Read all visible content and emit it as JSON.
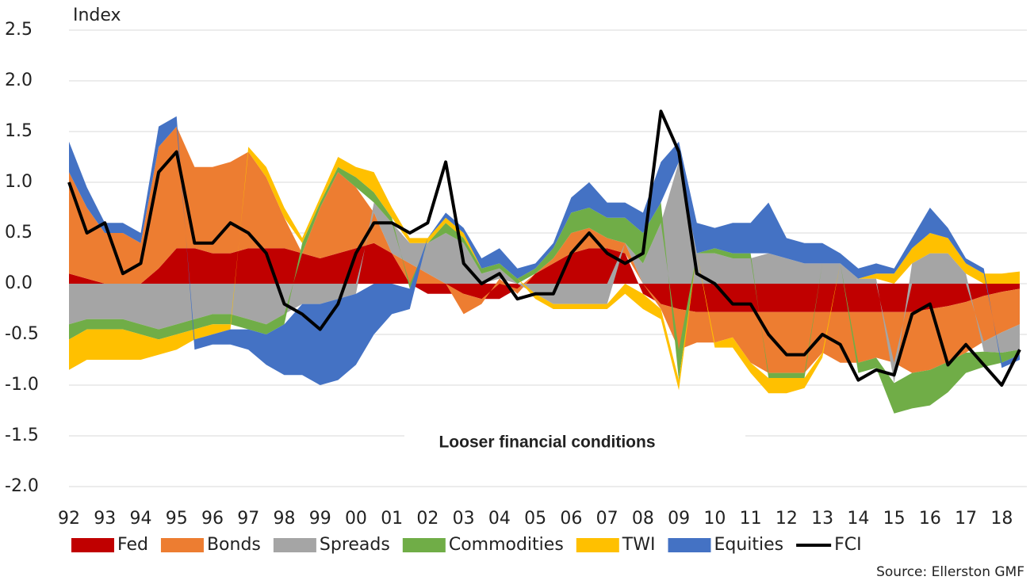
{
  "chart_data": {
    "type": "area",
    "stacked": true,
    "y_axis_label": "Index",
    "annotation": "Looser financial conditions",
    "source": "Source: Ellerston GMF",
    "legend": "bottom",
    "grid": true,
    "xlim": [
      1992,
      2018.7
    ],
    "ylim": [
      -2,
      2.5
    ],
    "yticks": [
      {
        "value": -2,
        "label": "-2.0"
      },
      -1.5,
      {
        "value": -1,
        "label": "-1.0"
      },
      -0.5,
      {
        "value": 0,
        "label": "0.0"
      },
      0.5,
      {
        "value": 1,
        "label": "1.0"
      },
      1.5,
      {
        "value": 2,
        "label": "2.0"
      },
      2.5
    ],
    "xticks": [
      {
        "value": 1992,
        "label": "92"
      },
      {
        "value": 1993,
        "label": "93"
      },
      {
        "value": 1994,
        "label": "94"
      },
      {
        "value": 1995,
        "label": "95"
      },
      {
        "value": 1996,
        "label": "96"
      },
      {
        "value": 1997,
        "label": "97"
      },
      {
        "value": 1998,
        "label": "98"
      },
      {
        "value": 1999,
        "label": "99"
      },
      {
        "value": 2000,
        "label": "00"
      },
      {
        "value": 2001,
        "label": "01"
      },
      {
        "value": 2002,
        "label": "02"
      },
      {
        "value": 2003,
        "label": "03"
      },
      {
        "value": 2004,
        "label": "04"
      },
      {
        "value": 2005,
        "label": "05"
      },
      {
        "value": 2006,
        "label": "06"
      },
      {
        "value": 2007,
        "label": "07"
      },
      {
        "value": 2008,
        "label": "08"
      },
      {
        "value": 2009,
        "label": "09"
      },
      {
        "value": 2010,
        "label": "10"
      },
      {
        "value": 2011,
        "label": "11"
      },
      {
        "value": 2012,
        "label": "12"
      },
      {
        "value": 2013,
        "label": "13"
      },
      {
        "value": 2014,
        "label": "14"
      },
      {
        "value": 2015,
        "label": "15"
      },
      {
        "value": 2016,
        "label": "16"
      },
      {
        "value": 2017,
        "label": "17"
      },
      {
        "value": 2018,
        "label": "18"
      }
    ],
    "x": [
      1992,
      1992.5,
      1993,
      1993.5,
      1994,
      1994.5,
      1995,
      1995.5,
      1996,
      1996.5,
      1997,
      1997.5,
      1998,
      1998.5,
      1999,
      1999.5,
      2000,
      2000.5,
      2001,
      2001.5,
      2002,
      2002.5,
      2003,
      2003.5,
      2004,
      2004.5,
      2005,
      2005.5,
      2006,
      2006.5,
      2007,
      2007.5,
      2008,
      2008.5,
      2009,
      2009.5,
      2010,
      2010.5,
      2011,
      2011.5,
      2012,
      2012.5,
      2013,
      2013.5,
      2014,
      2014.5,
      2015,
      2015.5,
      2016,
      2016.5,
      2017,
      2017.5,
      2018,
      2018.5
    ],
    "series": [
      {
        "name": "Fed",
        "color": "#c00000",
        "values": [
          0.1,
          0.05,
          0,
          0,
          0,
          0.15,
          0.35,
          0.35,
          0.3,
          0.3,
          0.35,
          0.35,
          0.35,
          0.3,
          0.25,
          0.3,
          0.35,
          0.4,
          0.3,
          0,
          -0.1,
          -0.1,
          -0.1,
          -0.15,
          -0.15,
          -0.05,
          0.1,
          0.2,
          0.3,
          0.35,
          0.35,
          0.3,
          -0.1,
          -0.2,
          -0.25,
          -0.28,
          -0.28,
          -0.28,
          -0.28,
          -0.28,
          -0.28,
          -0.28,
          -0.28,
          -0.28,
          -0.28,
          -0.28,
          -0.28,
          -0.28,
          -0.25,
          -0.22,
          -0.18,
          -0.12,
          -0.08,
          -0.05
        ]
      },
      {
        "name": "Bonds",
        "color": "#ed7d31",
        "values": [
          1.0,
          0.7,
          0.5,
          0.5,
          0.4,
          1.2,
          1.2,
          0.8,
          0.85,
          0.9,
          0.95,
          0.7,
          0.3,
          0,
          0.5,
          0.8,
          0.6,
          0.3,
          0,
          0.2,
          0.1,
          0,
          -0.2,
          -0.05,
          0.05,
          -0.05,
          0,
          0.05,
          0.2,
          0.2,
          0.1,
          0.1,
          0,
          -0.05,
          -0.4,
          -0.3,
          -0.3,
          -0.25,
          -0.5,
          -0.6,
          -0.6,
          -0.6,
          -0.4,
          -0.5,
          -0.5,
          -0.45,
          -0.5,
          -0.6,
          -0.6,
          -0.55,
          -0.5,
          -0.45,
          -0.4,
          -0.35
        ]
      },
      {
        "name": "Spreads",
        "color": "#a5a5a5",
        "values": [
          -0.4,
          -0.35,
          -0.35,
          -0.35,
          -0.4,
          -0.45,
          -0.4,
          -0.35,
          -0.3,
          -0.3,
          -0.35,
          -0.4,
          -0.3,
          -0.2,
          -0.2,
          -0.15,
          -0.1,
          0.1,
          0.3,
          0.2,
          0.3,
          0.5,
          0.4,
          0.1,
          0.1,
          0,
          -0.1,
          -0.2,
          -0.2,
          -0.2,
          -0.2,
          0,
          0.2,
          0.6,
          1.2,
          0.3,
          0.3,
          0.25,
          0.25,
          0.3,
          0.25,
          0.2,
          0.2,
          0.2,
          0.05,
          0.05,
          -0.2,
          0.2,
          0.3,
          0.3,
          0.1,
          -0.1,
          -0.2,
          -0.25
        ]
      },
      {
        "name": "Commodities",
        "color": "#70ad47",
        "values": [
          -0.15,
          -0.1,
          -0.1,
          -0.1,
          -0.1,
          -0.1,
          -0.1,
          -0.1,
          -0.1,
          -0.1,
          -0.1,
          -0.1,
          -0.1,
          0.1,
          0.05,
          0.05,
          0.1,
          0.1,
          0.05,
          -0.05,
          0,
          0.1,
          0.05,
          0.05,
          0.05,
          0.05,
          0.05,
          0.1,
          0.2,
          0.2,
          0.2,
          0.25,
          0.3,
          0.2,
          -0.3,
          0,
          0.05,
          0.05,
          0.05,
          -0.05,
          -0.05,
          -0.05,
          0,
          0,
          -0.1,
          -0.1,
          -0.3,
          -0.35,
          -0.35,
          -0.3,
          -0.2,
          -0.15,
          -0.1,
          -0.05
        ]
      },
      {
        "name": "TWI",
        "color": "#ffc000",
        "values": [
          -0.3,
          -0.3,
          -0.3,
          -0.3,
          -0.25,
          -0.15,
          -0.15,
          -0.1,
          -0.1,
          -0.05,
          0.05,
          0.1,
          0.1,
          0.05,
          0.05,
          0.1,
          0.1,
          0.2,
          0.1,
          0.05,
          0.05,
          0.05,
          0.05,
          0,
          0,
          0,
          -0.05,
          -0.05,
          -0.05,
          -0.05,
          -0.05,
          -0.1,
          -0.15,
          -0.1,
          -0.1,
          0,
          -0.05,
          -0.1,
          -0.1,
          -0.15,
          -0.15,
          -0.1,
          -0.05,
          0,
          0,
          0.05,
          0.1,
          0.15,
          0.2,
          0.15,
          0.1,
          0.1,
          0.1,
          0.12
        ]
      },
      {
        "name": "Equities",
        "color": "#4472c4",
        "values": [
          0.3,
          0.2,
          0.1,
          0.1,
          0.1,
          0.2,
          0.1,
          -0.1,
          -0.1,
          -0.15,
          -0.2,
          -0.3,
          -0.5,
          -0.7,
          -0.8,
          -0.8,
          -0.7,
          -0.5,
          -0.3,
          -0.2,
          0,
          0.05,
          0.05,
          0.1,
          0.15,
          0.1,
          0.05,
          0.05,
          0.15,
          0.25,
          0.15,
          0.15,
          0.2,
          0.4,
          0.2,
          0.3,
          0.2,
          0.3,
          0.3,
          0.5,
          0.2,
          0.2,
          0.2,
          0.1,
          0.1,
          0.1,
          0.05,
          0.1,
          0.25,
          0.1,
          0.05,
          0.05,
          -0.05,
          -0.05
        ]
      },
      {
        "name": "FCI",
        "color": "#000000",
        "type": "line",
        "values": [
          1.0,
          0.5,
          0.6,
          0.1,
          0.2,
          1.1,
          1.3,
          0.4,
          0.4,
          0.6,
          0.5,
          0.3,
          -0.2,
          -0.3,
          -0.45,
          -0.2,
          0.3,
          0.6,
          0.6,
          0.5,
          0.6,
          1.2,
          0.2,
          0,
          0.1,
          -0.15,
          -0.1,
          -0.1,
          0.3,
          0.5,
          0.3,
          0.2,
          0.3,
          1.7,
          1.3,
          0.1,
          0,
          -0.2,
          -0.2,
          -0.5,
          -0.7,
          -0.7,
          -0.5,
          -0.6,
          -0.95,
          -0.85,
          -0.9,
          -0.3,
          -0.2,
          -0.8,
          -0.6,
          -0.8,
          -1.0,
          -0.65
        ]
      }
    ]
  }
}
